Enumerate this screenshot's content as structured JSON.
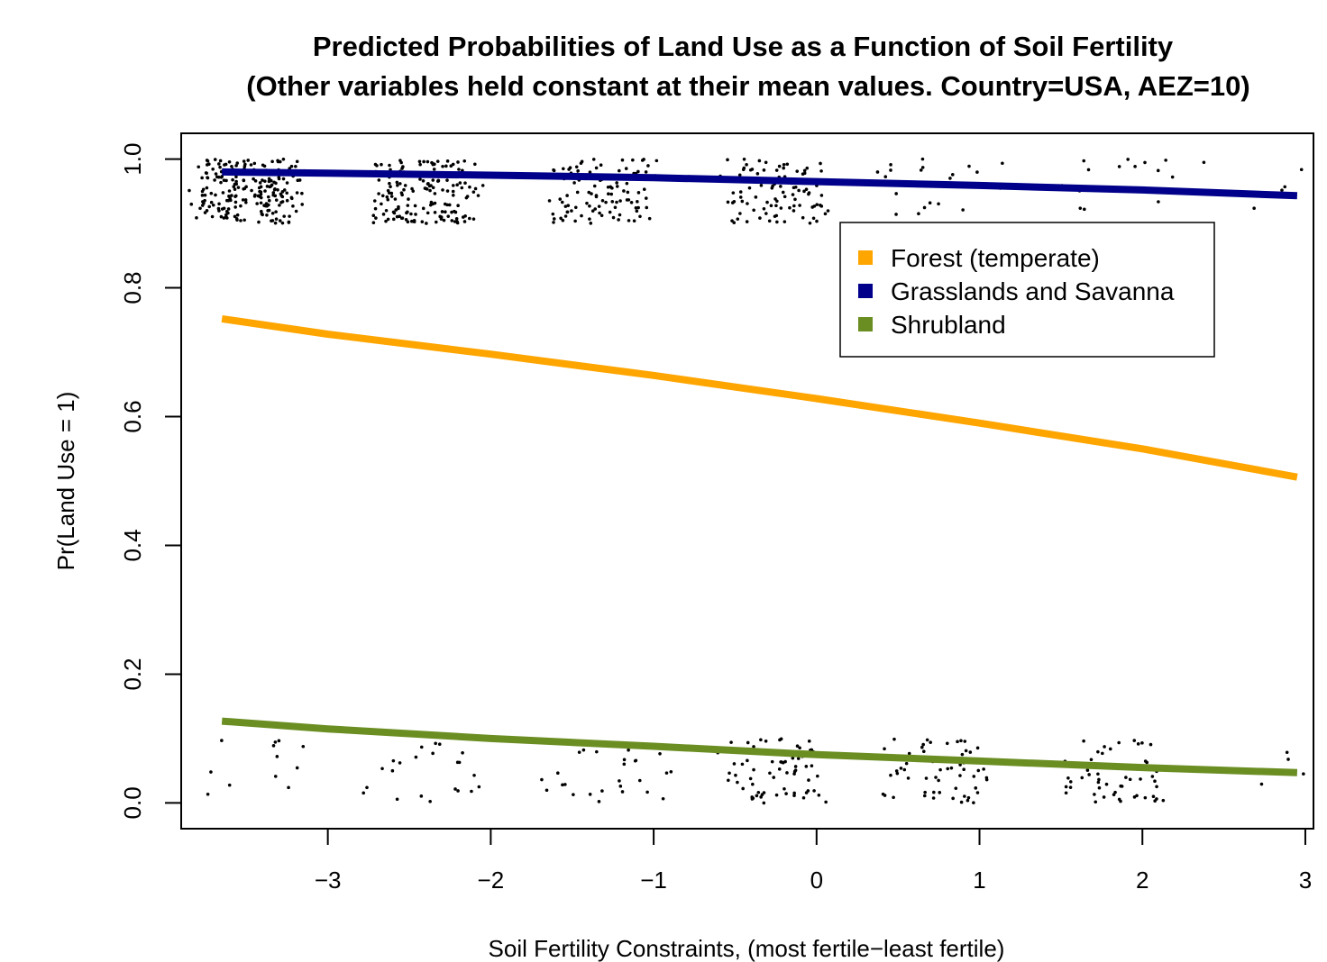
{
  "chart_data": {
    "type": "line",
    "title": "Predicted Probabilities of Land Use as a Function of Soil Fertility",
    "subtitle": "(Other variables held constant at their mean values. Country=USA, AEZ=10)",
    "xlabel": "Soil Fertility Constraints, (most fertile−least fertile)",
    "ylabel": "Pr(Land Use = 1)",
    "xlim": [
      -3.9,
      3.05
    ],
    "ylim": [
      -0.04,
      1.04
    ],
    "xticks": [
      -3,
      -2,
      -1,
      0,
      1,
      2,
      3
    ],
    "xtick_labels": [
      "−3",
      "−2",
      "−1",
      "0",
      "1",
      "2",
      "3"
    ],
    "yticks": [
      0.0,
      0.2,
      0.4,
      0.6,
      0.8,
      1.0
    ],
    "ytick_labels": [
      "0.0",
      "0.2",
      "0.4",
      "0.6",
      "0.8",
      "1.0"
    ],
    "grid": false,
    "legend_position": "top-right",
    "series": [
      {
        "name": "Forest (temperate)",
        "color": "#FFA500",
        "x": [
          -3.65,
          -3,
          -2,
          -1,
          0,
          1,
          2,
          2.95
        ],
        "y": [
          0.752,
          0.728,
          0.697,
          0.664,
          0.628,
          0.59,
          0.55,
          0.506
        ]
      },
      {
        "name": "Grasslands and Savanna",
        "color": "#00008B",
        "x": [
          -3.65,
          -3,
          -2,
          -1,
          0,
          1,
          2,
          2.95
        ],
        "y": [
          0.98,
          0.978,
          0.975,
          0.971,
          0.965,
          0.959,
          0.952,
          0.943
        ]
      },
      {
        "name": "Shrubland",
        "color": "#6B8E23",
        "x": [
          -3.65,
          -3,
          -2,
          -1,
          0,
          1,
          2,
          2.95
        ],
        "y": [
          0.127,
          0.115,
          0.1,
          0.088,
          0.075,
          0.065,
          0.055,
          0.047
        ]
      }
    ],
    "jitter_groups": [
      {
        "x": -3.5,
        "n": 220,
        "band": "high"
      },
      {
        "x": -3.5,
        "n": 12,
        "band": "low"
      },
      {
        "x": -2.4,
        "n": 160,
        "band": "high"
      },
      {
        "x": -2.4,
        "n": 22,
        "band": "low"
      },
      {
        "x": -1.3,
        "n": 110,
        "band": "high"
      },
      {
        "x": -1.3,
        "n": 30,
        "band": "low"
      },
      {
        "x": -0.25,
        "n": 95,
        "band": "high"
      },
      {
        "x": -0.25,
        "n": 70,
        "band": "low"
      },
      {
        "x": 0.75,
        "n": 20,
        "band": "high"
      },
      {
        "x": 0.75,
        "n": 60,
        "band": "low"
      },
      {
        "x": 1.8,
        "n": 18,
        "band": "high"
      },
      {
        "x": 1.8,
        "n": 55,
        "band": "low"
      },
      {
        "x": 2.75,
        "n": 6,
        "band": "high"
      },
      {
        "x": 2.75,
        "n": 5,
        "band": "low"
      }
    ]
  }
}
